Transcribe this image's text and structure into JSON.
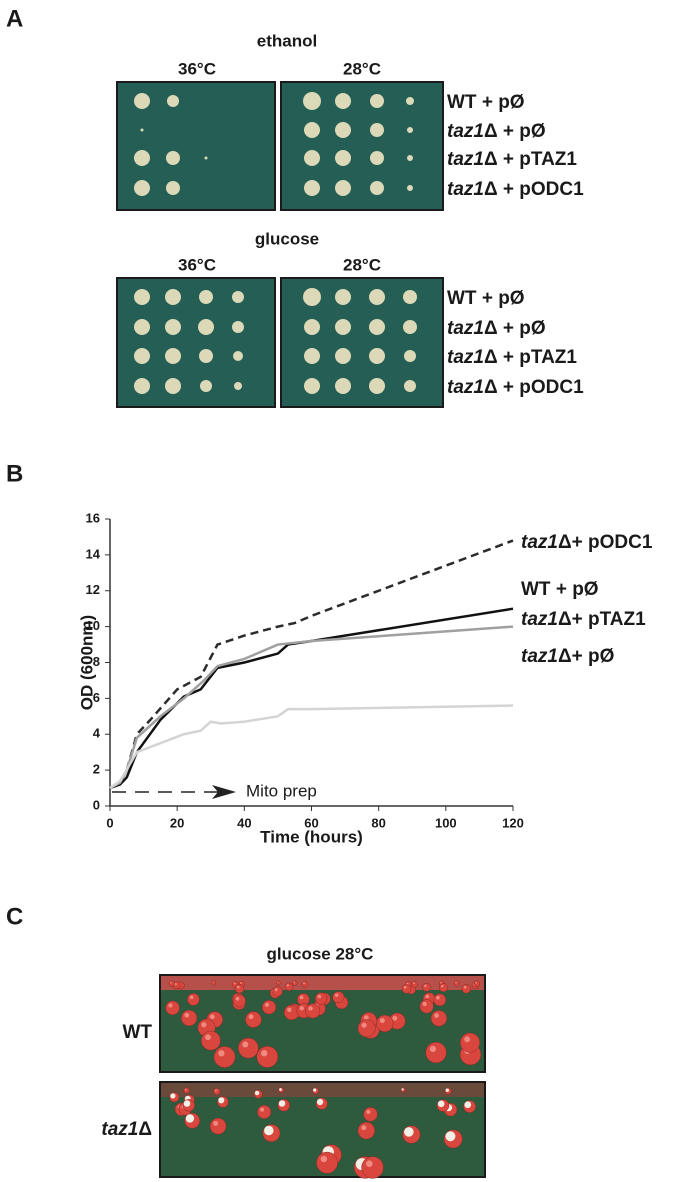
{
  "panel_a": {
    "letter": "A",
    "plates": [
      {
        "condition": "ethanol",
        "temps": [
          "36°C",
          "28°C"
        ],
        "rows": [
          "WT + pØ",
          "taz1Δ + pØ",
          "taz1Δ + pTAZ1",
          "taz1Δ + pODC1"
        ]
      },
      {
        "condition": "glucose",
        "temps": [
          "36°C",
          "28°C"
        ],
        "rows": [
          "WT + pØ",
          "taz1Δ + pØ",
          "taz1Δ + pTAZ1",
          "taz1Δ + pODC1"
        ]
      }
    ]
  },
  "panel_b": {
    "letter": "B"
  },
  "chart_data": {
    "type": "line",
    "xlabel": "Time (hours)",
    "ylabel": "OD (600nm)",
    "xlim": [
      0,
      120
    ],
    "ylim": [
      0,
      16
    ],
    "xticks": [
      0,
      20,
      40,
      60,
      80,
      100,
      120
    ],
    "yticks": [
      0,
      2,
      4,
      6,
      8,
      10,
      12,
      14,
      16
    ],
    "annotation": "Mito prep",
    "series": [
      {
        "name": "taz1Δ+ pODC1",
        "color": "#2b2b2b",
        "dashed": true,
        "x": [
          0,
          3,
          5,
          8,
          12,
          20,
          25,
          27,
          32,
          40,
          50,
          55,
          60,
          120
        ],
        "values": [
          1,
          1.3,
          2,
          4,
          4.8,
          6.5,
          7,
          7.2,
          9,
          9.5,
          10,
          10.2,
          10.6,
          14.8
        ]
      },
      {
        "name": "WT + pØ",
        "color": "#111111",
        "dashed": false,
        "x": [
          0,
          3,
          5,
          8,
          15,
          22,
          27,
          32,
          40,
          50,
          53,
          60,
          120
        ],
        "values": [
          1,
          1.2,
          1.6,
          3,
          4.8,
          6.1,
          6.5,
          7.7,
          8,
          8.5,
          9,
          9.2,
          11
        ]
      },
      {
        "name": "taz1Δ+ pTAZ1",
        "color": "#a0a0a0",
        "dashed": false,
        "x": [
          0,
          3,
          5,
          8,
          15,
          22,
          28,
          32,
          40,
          50,
          60,
          120
        ],
        "values": [
          1,
          1.3,
          2,
          3.8,
          5,
          6,
          7,
          7.8,
          8.2,
          9,
          9.2,
          10
        ]
      },
      {
        "name": "taz1Δ+ pØ",
        "color": "#d4d4d4",
        "dashed": false,
        "x": [
          0,
          3,
          8,
          15,
          22,
          27,
          30,
          33,
          40,
          50,
          53,
          60,
          120
        ],
        "values": [
          1,
          1.4,
          3,
          3.5,
          4,
          4.2,
          4.7,
          4.6,
          4.7,
          5,
          5.4,
          5.4,
          5.6
        ]
      }
    ]
  },
  "panel_c": {
    "letter": "C",
    "title": "glucose 28°C",
    "rows": [
      "WT",
      "taz1Δ"
    ]
  }
}
